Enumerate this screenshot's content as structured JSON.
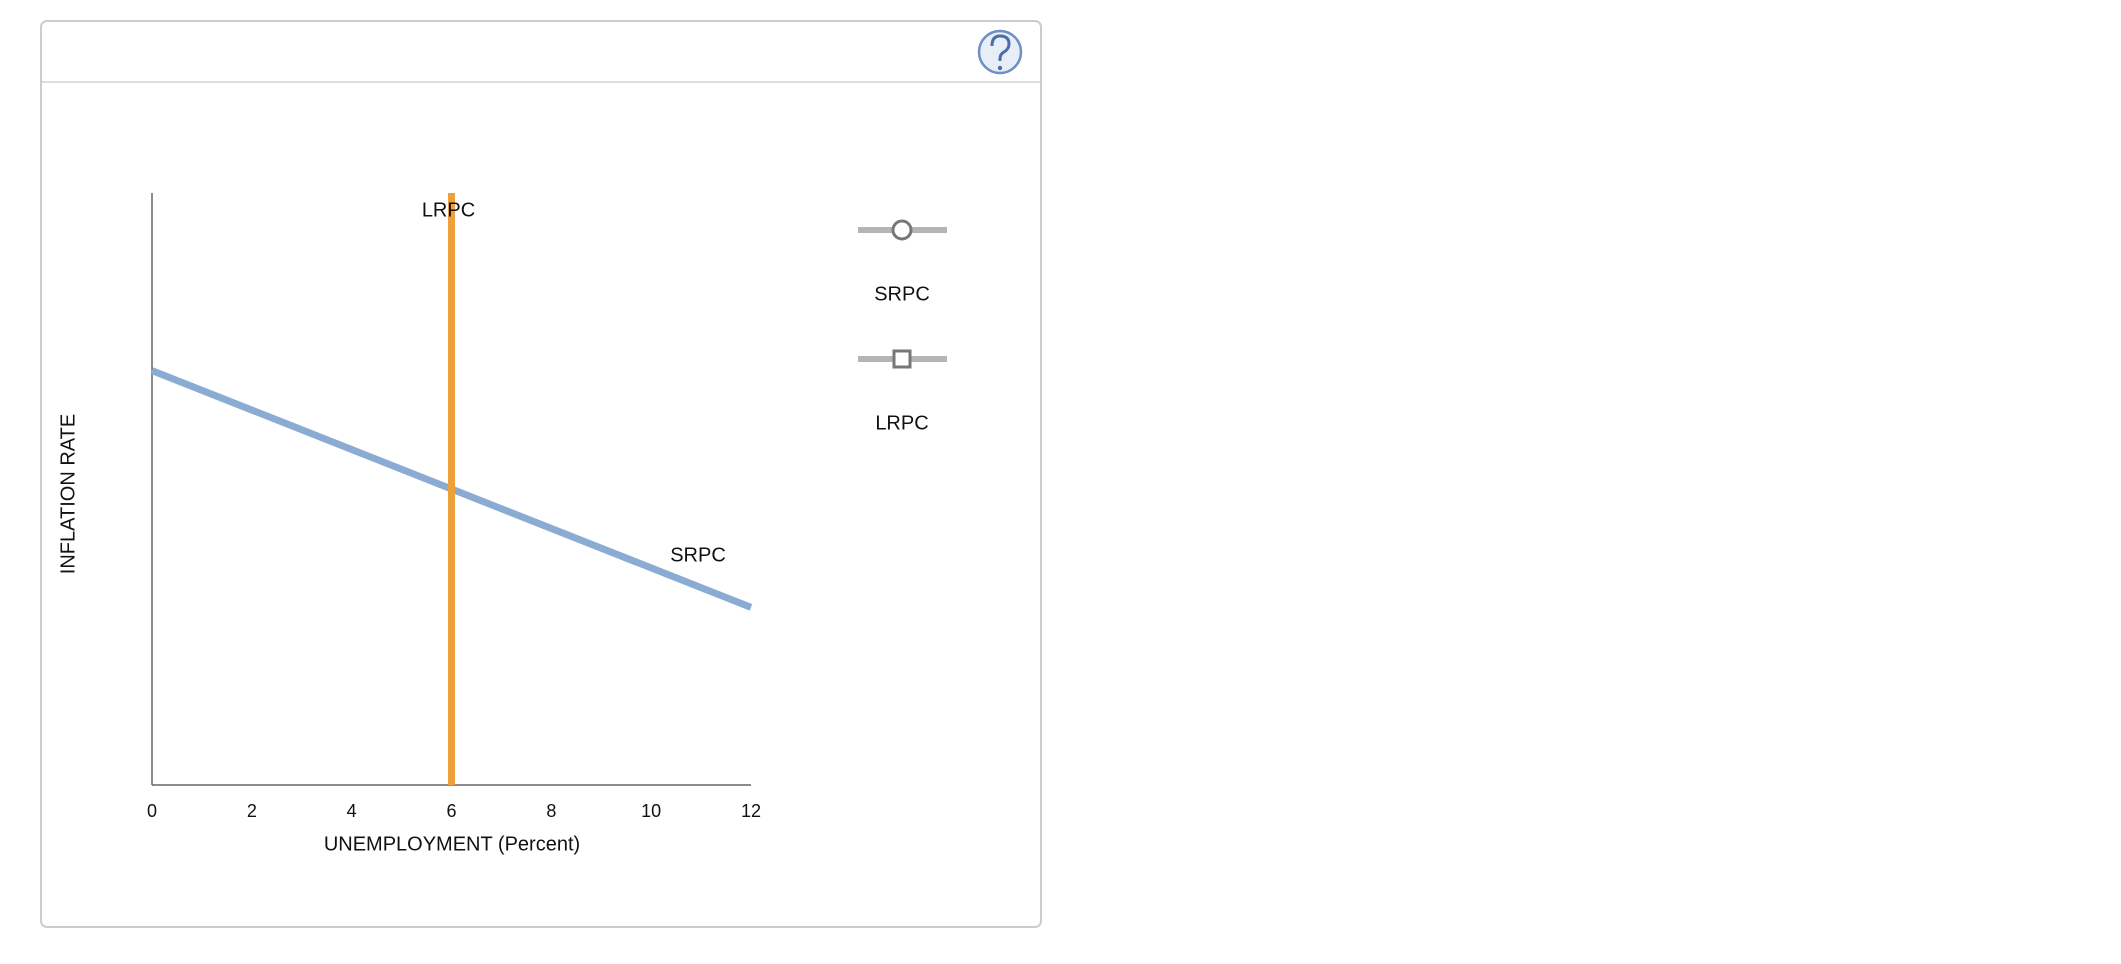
{
  "chart_data": {
    "type": "line",
    "x_label": "UNEMPLOYMENT (Percent)",
    "y_label": "INFLATION RATE",
    "xlim": [
      0,
      12
    ],
    "xticks": [
      0,
      2,
      4,
      6,
      8,
      10,
      12
    ],
    "ylim": [
      0,
      100
    ],
    "series": [
      {
        "name": "SRPC",
        "color": "#8aabd2",
        "x": [
          0,
          12
        ],
        "values": [
          70,
          30
        ]
      },
      {
        "name": "LRPC",
        "color": "#eea03a",
        "x": [
          6,
          6
        ],
        "values": [
          0,
          100
        ]
      }
    ]
  }
}
